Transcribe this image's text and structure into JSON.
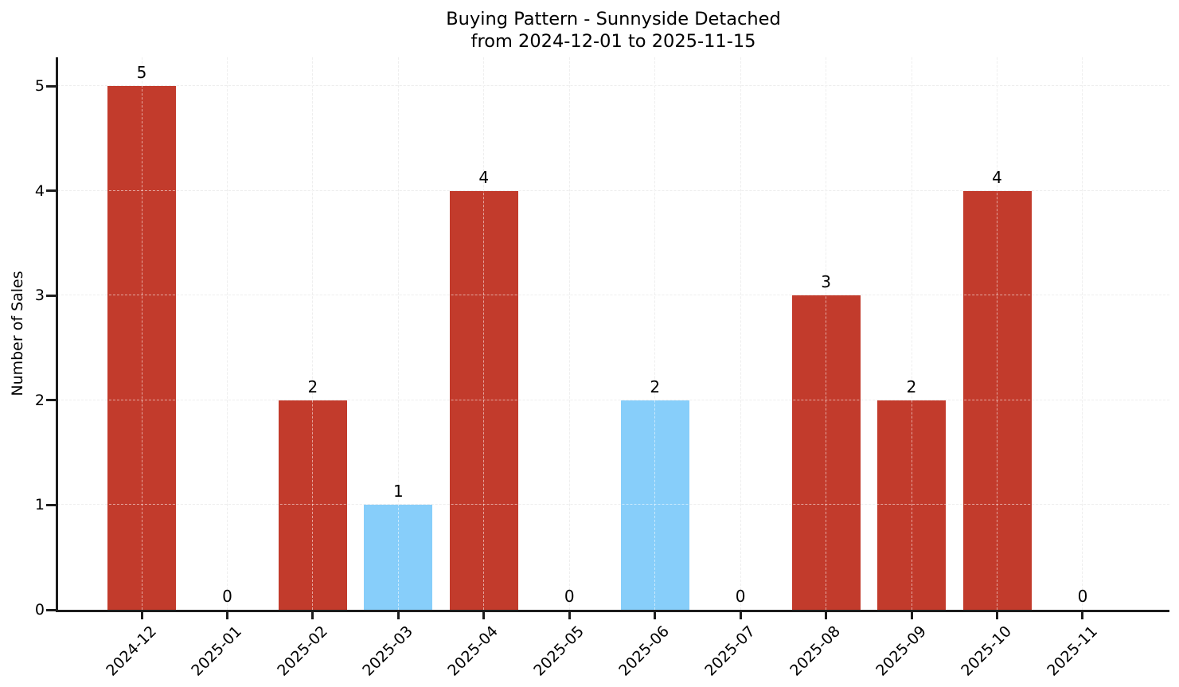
{
  "title": {
    "line1": "Buying Pattern - Sunnyside Detached",
    "line2": "from 2024-12-01 to 2025-11-15"
  },
  "chart_data": {
    "type": "bar",
    "title": "Buying Pattern - Sunnyside Detached\nfrom 2024-12-01 to 2025-11-15",
    "xlabel": "",
    "ylabel": "Number of Sales",
    "categories": [
      "2024-12",
      "2025-01",
      "2025-02",
      "2025-03",
      "2025-04",
      "2025-05",
      "2025-06",
      "2025-07",
      "2025-08",
      "2025-09",
      "2025-10",
      "2025-11"
    ],
    "values": [
      5,
      0,
      2,
      1,
      4,
      0,
      2,
      0,
      3,
      2,
      4,
      0
    ],
    "bar_value_labels": [
      "5",
      "0",
      "2",
      "1",
      "4",
      "0",
      "2",
      "0",
      "3",
      "2",
      "4",
      "0"
    ],
    "bar_colors": [
      "#c23b2c",
      "#c23b2c",
      "#c23b2c",
      "#87cefa",
      "#c23b2c",
      "#c23b2c",
      "#87cefa",
      "#c23b2c",
      "#c23b2c",
      "#c23b2c",
      "#c23b2c",
      "#c23b2c"
    ],
    "yticks": [
      0,
      1,
      2,
      3,
      4,
      5
    ],
    "ylim": [
      0,
      5.27
    ],
    "grid": true,
    "grid_style": "dashed",
    "legend_position": "none",
    "colors": {
      "red_bar": "#c23b2c",
      "blue_bar": "#87cefa",
      "grid": "#d9d9d9",
      "axis": "#1c1c1c",
      "text": "#000000"
    }
  }
}
